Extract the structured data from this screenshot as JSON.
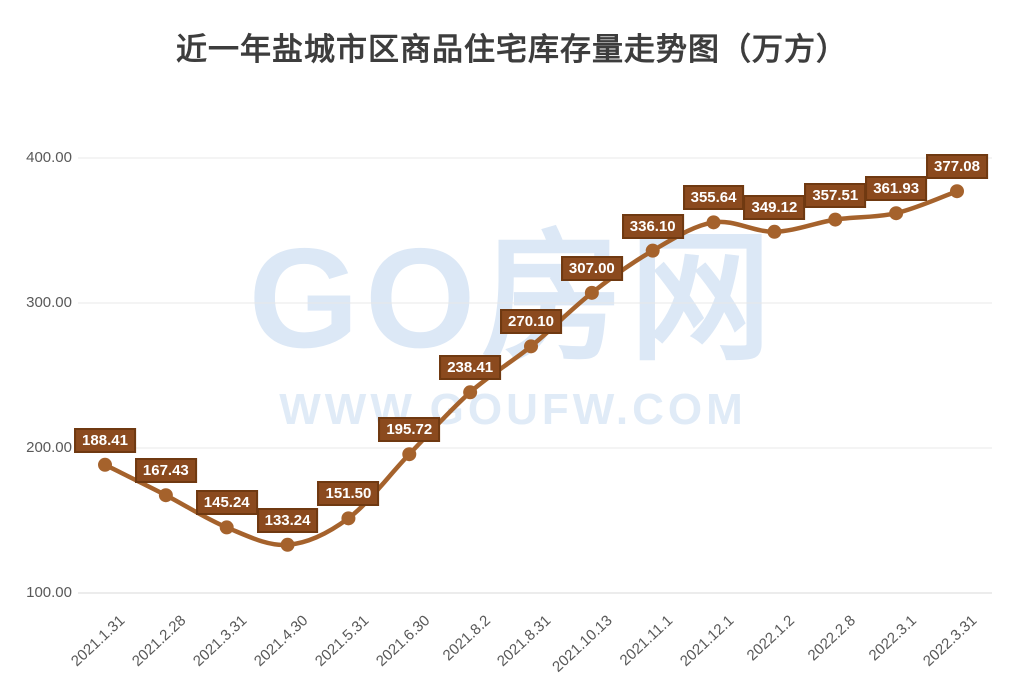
{
  "title": "近一年盐城市区商品住宅库存量走势图（万方）",
  "watermark": {
    "brand": "GO房网",
    "url": "WWW.GOUFW.COM"
  },
  "colors": {
    "title_text": "#3d3d3d",
    "axis_text": "#595959",
    "grid": "#e8e8e8",
    "grid_bottom": "#dadada",
    "line": "#a5622c",
    "marker": "#a5622c",
    "label_box_fill": "#8b4a1e",
    "label_box_border": "#6f3911",
    "label_text": "#ffffff",
    "watermark": "#dce8f6"
  },
  "chart_data": {
    "type": "line",
    "title": "近一年盐城市区商品住宅库存量走势图（万方）",
    "categories": [
      "2021.1.31",
      "2021.2.28",
      "2021.3.31",
      "2021.4.30",
      "2021.5.31",
      "2021.6.30",
      "2021.8.2",
      "2021.8.31",
      "2021.10.13",
      "2021.11.1",
      "2021.12.1",
      "2022.1.2",
      "2022.2.8",
      "2022.3.1",
      "2022.3.31"
    ],
    "values": [
      188.41,
      167.43,
      145.24,
      133.24,
      151.5,
      195.72,
      238.41,
      270.1,
      307.0,
      336.1,
      355.64,
      349.12,
      357.51,
      361.93,
      377.08
    ],
    "xlabel": "",
    "ylabel": "",
    "ylim": [
      100,
      400
    ],
    "yticks": [
      400,
      300,
      200,
      100
    ],
    "ytick_labels": [
      "400.00",
      "300.00",
      "200.00",
      "100.00"
    ],
    "grid": "horizontal gridlines only",
    "legend": "none",
    "smooth": true,
    "data_labels": "every point, boxed above marker, 2 decimals"
  }
}
